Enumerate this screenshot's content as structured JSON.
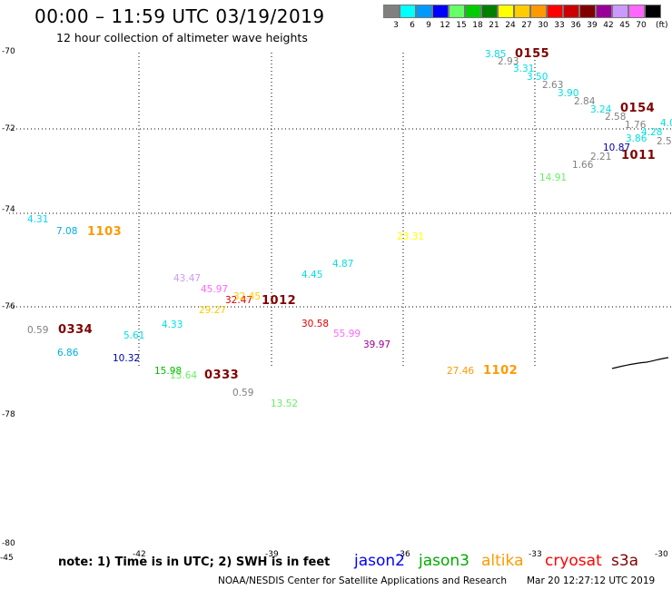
{
  "title": "00:00 – 11:59 UTC 03/19/2019",
  "subtitle": "12 hour collection of altimeter wave heights",
  "color_scale": {
    "unit": "(ft)",
    "bins": [
      {
        "label": "3",
        "color": "#808080"
      },
      {
        "label": "6",
        "color": "#00ffff"
      },
      {
        "label": "9",
        "color": "#0099ff"
      },
      {
        "label": "12",
        "color": "#0000ff"
      },
      {
        "label": "15",
        "color": "#66ff66"
      },
      {
        "label": "18",
        "color": "#00cc00"
      },
      {
        "label": "21",
        "color": "#008000"
      },
      {
        "label": "24",
        "color": "#ffff00"
      },
      {
        "label": "27",
        "color": "#ffcc00"
      },
      {
        "label": "30",
        "color": "#ff9900"
      },
      {
        "label": "33",
        "color": "#ff0000"
      },
      {
        "label": "36",
        "color": "#cc0000"
      },
      {
        "label": "39",
        "color": "#800000"
      },
      {
        "label": "42",
        "color": "#990099"
      },
      {
        "label": "45",
        "color": "#cc99ff"
      },
      {
        "label": "70",
        "color": "#ff66ff"
      },
      {
        "label": "",
        "color": "#000000"
      }
    ]
  },
  "latitude_labels": [
    "-70",
    "-72",
    "-74",
    "-76",
    "-78",
    "-80"
  ],
  "longitude_labels": [
    "-45",
    "-42",
    "-39",
    "-36",
    "-33",
    "-30"
  ],
  "observations": [
    {
      "value": "4.31",
      "color": "#00d8ff"
    },
    {
      "value": "7.08",
      "color": "#00aee0"
    },
    {
      "value": "0.59",
      "color": "#808080"
    },
    {
      "value": "6.86",
      "color": "#00aee0"
    },
    {
      "value": "5.61",
      "color": "#00e0e0"
    },
    {
      "value": "10.32",
      "color": "#0000aa"
    },
    {
      "value": "4.33",
      "color": "#00e0e0"
    },
    {
      "value": "15.98",
      "color": "#00bb00"
    },
    {
      "value": "13.64",
      "color": "#66ee66"
    },
    {
      "value": "43.47",
      "color": "#cc99ff"
    },
    {
      "value": "45.97",
      "color": "#ff66ff"
    },
    {
      "value": "32.47",
      "color": "#dd0000"
    },
    {
      "value": "32.45",
      "color": "#ffcc00"
    },
    {
      "value": "29.27",
      "color": "#ffcc00"
    },
    {
      "value": "0.59",
      "color": "#808080"
    },
    {
      "value": "13.52",
      "color": "#66ee66"
    },
    {
      "value": "4.45",
      "color": "#00e0e0"
    },
    {
      "value": "4.87",
      "color": "#00e0e0"
    },
    {
      "value": "30.58",
      "color": "#dd0000"
    },
    {
      "value": "55.99",
      "color": "#ff66ff"
    },
    {
      "value": "39.97",
      "color": "#990099"
    },
    {
      "value": "23.31",
      "color": "#ffff00"
    },
    {
      "value": "27.46",
      "color": "#ff9900"
    },
    {
      "value": "3.85",
      "color": "#00e0e0"
    },
    {
      "value": "2.93",
      "color": "#808080"
    },
    {
      "value": "3.31",
      "color": "#00e0e0"
    },
    {
      "value": "3.50",
      "color": "#00e0e0"
    },
    {
      "value": "2.63",
      "color": "#808080"
    },
    {
      "value": "3.90",
      "color": "#00e0e0"
    },
    {
      "value": "2.84",
      "color": "#808080"
    },
    {
      "value": "3.24",
      "color": "#00e0e0"
    },
    {
      "value": "2.58",
      "color": "#808080"
    },
    {
      "value": "1.76",
      "color": "#808080"
    },
    {
      "value": "4.0",
      "color": "#00e0e0"
    },
    {
      "value": "4.28",
      "color": "#00e0e0"
    },
    {
      "value": "3.86",
      "color": "#00e0e0"
    },
    {
      "value": "2.5",
      "color": "#808080"
    },
    {
      "value": "10.87",
      "color": "#0000aa"
    },
    {
      "value": "2.21",
      "color": "#808080"
    },
    {
      "value": "1.66",
      "color": "#808080"
    },
    {
      "value": "14.91",
      "color": "#66ee66"
    }
  ],
  "pass_times": [
    {
      "time": "1103",
      "color": "#ff9900"
    },
    {
      "time": "0334",
      "color": "#800000"
    },
    {
      "time": "0333",
      "color": "#800000"
    },
    {
      "time": "1012",
      "color": "#800000"
    },
    {
      "time": "1102",
      "color": "#ff9900"
    },
    {
      "time": "0155",
      "color": "#800000"
    },
    {
      "time": "0154",
      "color": "#800000"
    },
    {
      "time": "1011",
      "color": "#800000"
    }
  ],
  "note": "note:  1) Time is in UTC;  2) SWH is in feet",
  "satellites": [
    {
      "name": "jason2",
      "color": "#0000ff"
    },
    {
      "name": "jason3",
      "color": "#00aa00"
    },
    {
      "name": "altika",
      "color": "#ff9900"
    },
    {
      "name": "cryosat",
      "color": "#ff0000"
    },
    {
      "name": "s3a",
      "color": "#800000"
    }
  ],
  "credit": "NOAA/NESDIS Center for Satellite Applications and Research",
  "timestamp": "Mar 20 12:27:12 UTC 2019"
}
